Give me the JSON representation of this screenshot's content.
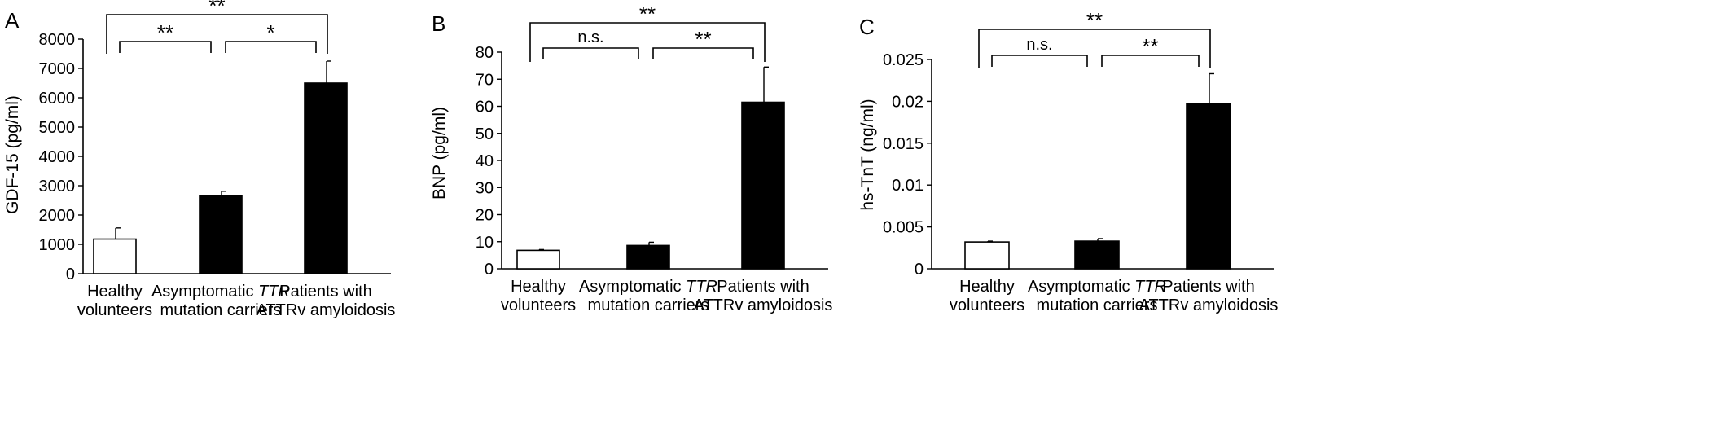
{
  "chart_data": [
    {
      "panel": "A",
      "type": "bar",
      "ylabel": "GDF-15 (pg/ml)",
      "ylim": [
        0,
        8000
      ],
      "yticks": [
        0,
        1000,
        2000,
        3000,
        4000,
        5000,
        6000,
        7000,
        8000
      ],
      "ytick_labels": [
        "0",
        "1000",
        "2000",
        "3000",
        "4000",
        "5000",
        "6000",
        "7000",
        "8000"
      ],
      "categories": [
        {
          "line1_a": "Healthy",
          "line1_b": "",
          "line2": "volunteers"
        },
        {
          "line1_a": "Asymptomatic ",
          "line1_b": "TTR",
          "line2": "mutation carriers"
        },
        {
          "line1_a": "Patients with",
          "line1_b": "",
          "line2": "ATTRv amyloidosis"
        }
      ],
      "values": [
        1180,
        2650,
        6500
      ],
      "errors": [
        380,
        160,
        750
      ],
      "fills": [
        "#ffffff",
        "#000000",
        "#000000"
      ],
      "brackets": [
        {
          "from": 0,
          "to": 1,
          "label": "**",
          "level": 1
        },
        {
          "from": 1,
          "to": 2,
          "label": "*",
          "level": 1
        },
        {
          "from": 0,
          "to": 2,
          "label": "**",
          "level": 2
        }
      ]
    },
    {
      "panel": "B",
      "type": "bar",
      "ylabel": "BNP (pg/ml)",
      "ylim": [
        0,
        80
      ],
      "yticks": [
        0,
        10,
        20,
        30,
        40,
        50,
        60,
        70,
        80
      ],
      "ytick_labels": [
        "0",
        "10",
        "20",
        "30",
        "40",
        "50",
        "60",
        "70",
        "80"
      ],
      "categories": [
        {
          "line1_a": "Healthy",
          "line1_b": "",
          "line2": "volunteers"
        },
        {
          "line1_a": "Asymptomatic ",
          "line1_b": "TTR",
          "line2": "mutation carriers"
        },
        {
          "line1_a": "Patients with",
          "line1_b": "",
          "line2": "ATTRv amyloidosis"
        }
      ],
      "values": [
        6.8,
        8.6,
        61.5
      ],
      "errors": [
        0.3,
        1.2,
        13
      ],
      "fills": [
        "#ffffff",
        "#000000",
        "#000000"
      ],
      "brackets": [
        {
          "from": 0,
          "to": 1,
          "label": "n.s.",
          "level": 1
        },
        {
          "from": 1,
          "to": 2,
          "label": "**",
          "level": 1
        },
        {
          "from": 0,
          "to": 2,
          "label": "**",
          "level": 2
        }
      ]
    },
    {
      "panel": "C",
      "type": "bar",
      "ylabel": "hs-TnT (ng/ml)",
      "ylim": [
        0,
        0.025
      ],
      "yticks": [
        0,
        0.005,
        0.01,
        0.015,
        0.02,
        0.025
      ],
      "ytick_labels": [
        "0",
        "0.005",
        "0.01",
        "0.015",
        "0.02",
        "0.025"
      ],
      "categories": [
        {
          "line1_a": "Healthy",
          "line1_b": "",
          "line2": "volunteers"
        },
        {
          "line1_a": "Asymptomatic ",
          "line1_b": "TTR",
          "line2": "mutation carriers"
        },
        {
          "line1_a": "Patients with",
          "line1_b": "",
          "line2": "ATTRv amyloidosis"
        }
      ],
      "values": [
        0.0032,
        0.0033,
        0.0197
      ],
      "errors": [
        0.0001,
        0.0003,
        0.0036
      ],
      "fills": [
        "#ffffff",
        "#000000",
        "#000000"
      ],
      "brackets": [
        {
          "from": 0,
          "to": 1,
          "label": "n.s.",
          "level": 1
        },
        {
          "from": 1,
          "to": 2,
          "label": "**",
          "level": 1
        },
        {
          "from": 0,
          "to": 2,
          "label": "**",
          "level": 2
        }
      ]
    }
  ]
}
